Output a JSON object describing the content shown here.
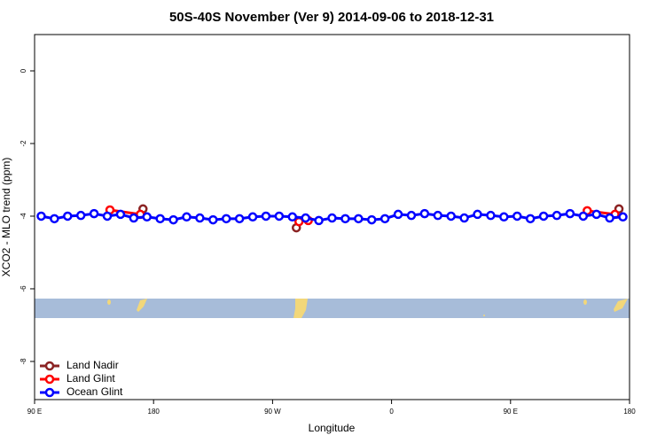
{
  "chart_data": {
    "type": "line",
    "title": "50S-40S November (Ver 9)   2014-09-06 to 2018-12-31",
    "x_label": "Longitude",
    "y_label": "XCO2 - MLO trend (ppm)",
    "xlim": [
      90,
      540
    ],
    "ylim": [
      -9.05,
      1.0
    ],
    "xticks": [
      {
        "value": 90,
        "label": "90 E"
      },
      180,
      {
        "value": 270,
        "label": "90 W"
      },
      {
        "value": 360,
        "label": "0"
      },
      {
        "value": 450,
        "label": "90 E"
      },
      {
        "value": 540,
        "label": "180"
      }
    ],
    "yticks": [
      0,
      -2,
      -4,
      -6,
      -8
    ],
    "legend": "bottom-left",
    "series": [
      {
        "name": "Land Nadir",
        "color": "#8b2323",
        "x": [
          172,
          230,
          288,
          400,
          532
        ],
        "values": [
          -3.8,
          null,
          -4.32,
          null,
          -3.8
        ]
      },
      {
        "name": "Land Glint",
        "color": "#ff0000",
        "x": [
          147,
          170,
          230,
          290,
          297,
          400,
          508,
          529
        ],
        "values": [
          -3.83,
          -3.95,
          null,
          -4.15,
          -4.12,
          null,
          -3.85,
          -3.95
        ]
      },
      {
        "name": "Ocean Glint",
        "color": "#0000ff",
        "x": [
          95,
          105,
          115,
          125,
          135,
          145,
          155,
          165,
          175,
          185,
          195,
          205,
          215,
          225,
          235,
          245,
          255,
          265,
          275,
          285,
          295,
          305,
          315,
          325,
          335,
          345,
          355,
          365,
          375,
          385,
          395,
          405,
          415,
          425,
          435,
          445,
          455,
          465,
          475,
          485,
          495,
          505,
          515,
          525,
          535
        ],
        "values": [
          -4.0,
          -4.07,
          -4.0,
          -3.98,
          -3.93,
          -4.0,
          -3.95,
          -4.05,
          -4.02,
          -4.07,
          -4.1,
          -4.02,
          -4.05,
          -4.1,
          -4.07,
          -4.07,
          -4.02,
          -4.0,
          -4.0,
          -4.02,
          -4.05,
          -4.12,
          -4.05,
          -4.07,
          -4.07,
          -4.1,
          -4.07,
          -3.95,
          -3.98,
          -3.93,
          -3.98,
          -4.0,
          -4.05,
          -3.95,
          -3.98,
          -4.02,
          -4.0,
          -4.07,
          -4.0,
          -3.98,
          -3.93,
          -4.0,
          -3.95,
          -4.05,
          -4.02
        ]
      }
    ]
  }
}
